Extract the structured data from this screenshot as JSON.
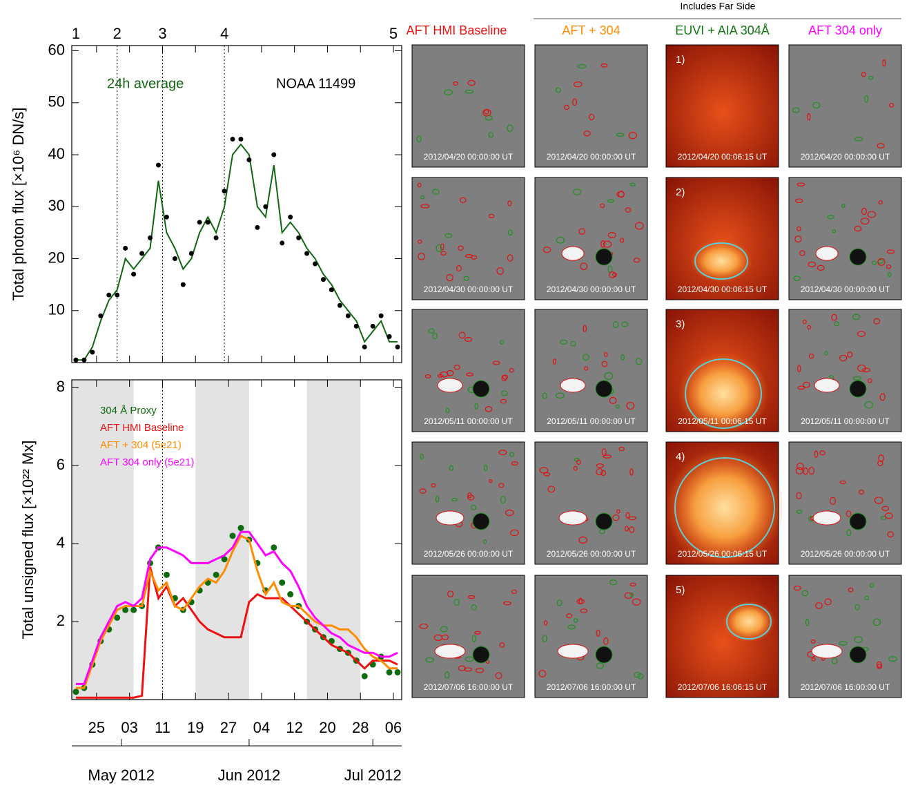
{
  "chart_data": [
    {
      "type": "line",
      "ylabel": "Total photon flux [×10⁶ DN/s]",
      "annotation": "NOAA 11499",
      "xlim": [
        "2012-04-19",
        "2012-07-08"
      ],
      "ylim": [
        0,
        61
      ],
      "yticks": [
        10,
        20,
        30,
        40,
        50,
        60
      ],
      "event_markers": [
        {
          "label": "1",
          "x": "2012-04-20",
          "dotted": false
        },
        {
          "label": "2",
          "x": "2012-04-30",
          "dotted": true
        },
        {
          "label": "3",
          "x": "2012-05-11",
          "dotted": true
        },
        {
          "label": "4",
          "x": "2012-05-26",
          "dotted": true
        },
        {
          "label": "5",
          "x": "2012-07-06",
          "dotted": false
        }
      ],
      "x": [
        "2012-04-20",
        "2012-04-22",
        "2012-04-24",
        "2012-04-26",
        "2012-04-28",
        "2012-04-30",
        "2012-05-02",
        "2012-05-04",
        "2012-05-06",
        "2012-05-08",
        "2012-05-10",
        "2012-05-12",
        "2012-05-14",
        "2012-05-16",
        "2012-05-18",
        "2012-05-20",
        "2012-05-22",
        "2012-05-24",
        "2012-05-26",
        "2012-05-28",
        "2012-05-30",
        "2012-06-01",
        "2012-06-03",
        "2012-06-05",
        "2012-06-07",
        "2012-06-09",
        "2012-06-11",
        "2012-06-13",
        "2012-06-15",
        "2012-06-17",
        "2012-06-19",
        "2012-06-21",
        "2012-06-23",
        "2012-06-25",
        "2012-06-27",
        "2012-06-29",
        "2012-07-01",
        "2012-07-03",
        "2012-07-05",
        "2012-07-07"
      ],
      "series": [
        {
          "name": "24h average",
          "color": "#116611",
          "style": "line",
          "values": [
            0.5,
            0.5,
            3,
            8,
            12,
            14,
            20,
            18,
            20,
            22,
            35,
            25,
            22,
            18,
            20,
            25,
            28,
            25,
            30,
            40,
            42,
            40,
            30,
            28,
            38,
            25,
            27,
            25,
            22,
            20,
            17,
            15,
            12,
            10,
            8,
            4,
            6,
            8,
            4,
            4
          ]
        },
        {
          "color": "#000000",
          "style": "dots",
          "values": [
            0.5,
            0.5,
            2,
            9,
            13,
            13,
            22,
            17,
            21,
            24,
            38,
            28,
            20,
            15,
            21,
            27,
            27,
            24,
            33,
            43,
            43,
            39,
            26,
            30,
            40,
            23,
            28,
            24,
            21,
            19,
            16,
            14,
            11,
            9,
            7,
            3,
            7,
            9,
            5,
            3
          ]
        }
      ]
    },
    {
      "type": "line",
      "ylabel": "Total unsigned flux [×10²² Mx]",
      "xlim": [
        "2012-04-19",
        "2012-07-08"
      ],
      "ylim": [
        0,
        8.2
      ],
      "yticks": [
        2,
        4,
        6,
        8
      ],
      "xticks": [
        {
          "value": "2012-04-25",
          "label": "25"
        },
        {
          "value": "2012-05-03",
          "label": "03"
        },
        {
          "value": "2012-05-11",
          "label": "11"
        },
        {
          "value": "2012-05-19",
          "label": "19"
        },
        {
          "value": "2012-05-27",
          "label": "27"
        },
        {
          "value": "2012-06-04",
          "label": "04"
        },
        {
          "value": "2012-06-12",
          "label": "12"
        },
        {
          "value": "2012-06-20",
          "label": "20"
        },
        {
          "value": "2012-06-28",
          "label": "28"
        },
        {
          "value": "2012-07-06",
          "label": "06"
        }
      ],
      "month_ticks": [
        {
          "value": "2012-05-01",
          "label": "May 2012"
        },
        {
          "value": "2012-06-01",
          "label": "Jun 2012"
        },
        {
          "value": "2012-07-01",
          "label": "Jul 2012"
        }
      ],
      "shaded_ranges": [
        [
          "2012-04-19",
          "2012-05-04"
        ],
        [
          "2012-05-19",
          "2012-06-01"
        ],
        [
          "2012-06-15",
          "2012-06-28"
        ]
      ],
      "x": [
        "2012-04-20",
        "2012-04-22",
        "2012-04-24",
        "2012-04-26",
        "2012-04-28",
        "2012-04-30",
        "2012-05-02",
        "2012-05-04",
        "2012-05-06",
        "2012-05-08",
        "2012-05-10",
        "2012-05-12",
        "2012-05-14",
        "2012-05-16",
        "2012-05-18",
        "2012-05-20",
        "2012-05-22",
        "2012-05-24",
        "2012-05-26",
        "2012-05-28",
        "2012-05-30",
        "2012-06-01",
        "2012-06-03",
        "2012-06-05",
        "2012-06-07",
        "2012-06-09",
        "2012-06-11",
        "2012-06-13",
        "2012-06-15",
        "2012-06-17",
        "2012-06-19",
        "2012-06-21",
        "2012-06-23",
        "2012-06-25",
        "2012-06-27",
        "2012-06-29",
        "2012-07-01",
        "2012-07-03",
        "2012-07-05",
        "2012-07-07"
      ],
      "series": [
        {
          "name": "304 Å Proxy",
          "color": "#0e6b0e",
          "style": "dots",
          "values": [
            0.2,
            0.3,
            0.9,
            1.5,
            1.8,
            2.1,
            2.3,
            2.3,
            2.4,
            3.5,
            3.9,
            3.2,
            2.6,
            2.3,
            2.5,
            2.8,
            3.0,
            3.2,
            3.6,
            4.2,
            4.4,
            4.1,
            3.5,
            2.8,
            3.9,
            3.0,
            2.7,
            2.4,
            2.0,
            1.8,
            1.6,
            1.5,
            1.3,
            1.2,
            1.0,
            0.6,
            0.9,
            1.1,
            0.7,
            0.7
          ]
        },
        {
          "name": "AFT HMI Baseline",
          "color": "#ee1111",
          "style": "line",
          "values": [
            0.05,
            0.05,
            0.05,
            0.05,
            0.05,
            0.05,
            0.05,
            0.05,
            0.1,
            3.4,
            2.6,
            2.9,
            2.4,
            2.6,
            2.3,
            2.0,
            1.8,
            1.7,
            1.6,
            1.6,
            1.6,
            2.5,
            2.7,
            2.6,
            2.6,
            2.6,
            2.4,
            2.2,
            2.0,
            1.8,
            1.6,
            1.4,
            1.3,
            1.2,
            1.0,
            0.8,
            1.0,
            1.0,
            1.0,
            0.9
          ]
        },
        {
          "name": "AFT + 304 (5e21)",
          "color": "#ff8c00",
          "style": "line",
          "values": [
            0.3,
            0.3,
            0.9,
            1.5,
            1.9,
            2.3,
            2.4,
            2.4,
            2.4,
            3.3,
            2.8,
            3.0,
            2.4,
            2.3,
            2.6,
            2.9,
            3.1,
            3.0,
            3.3,
            3.8,
            4.2,
            4.1,
            3.3,
            2.7,
            3.0,
            2.5,
            2.4,
            2.4,
            2.2,
            2.0,
            1.9,
            1.9,
            1.8,
            1.8,
            1.6,
            1.3,
            1.1,
            1.0,
            0.8,
            0.8
          ]
        },
        {
          "name": "AFT 304 only (5e21)",
          "color": "#ff00ff",
          "style": "line",
          "values": [
            0.4,
            0.4,
            1.0,
            1.6,
            2.0,
            2.4,
            2.5,
            2.4,
            2.6,
            3.6,
            3.9,
            3.9,
            3.8,
            3.7,
            3.5,
            3.5,
            3.5,
            3.6,
            3.7,
            3.9,
            4.3,
            4.3,
            4.0,
            3.7,
            3.8,
            3.5,
            3.3,
            2.9,
            2.4,
            2.1,
            1.9,
            1.7,
            1.6,
            1.4,
            1.3,
            1.2,
            1.2,
            1.1,
            1.1,
            1.2
          ]
        }
      ]
    }
  ],
  "image_grid": {
    "group_header": "Includes Far Side",
    "columns": [
      {
        "title": "AFT HMI Baseline",
        "color": "#ee1111"
      },
      {
        "title": "AFT + 304",
        "color": "#ff8c00"
      },
      {
        "title": "EUVI + AIA 304Å",
        "color": "#117711"
      },
      {
        "title": "AFT 304 only",
        "color": "#ff00ff"
      }
    ],
    "rows": [
      {
        "label": "1)",
        "timestamps": [
          "2012/04/20 00:00:00 UT",
          "2012/04/20 00:00:00 UT",
          "2012/04/20 00:06:15 UT",
          "2012/04/20 00:00:00 UT"
        ]
      },
      {
        "label": "2)",
        "timestamps": [
          "2012/04/30 00:00:00 UT",
          "2012/04/30 00:00:00 UT",
          "2012/04/30 00:06:15 UT",
          "2012/04/30 00:00:00 UT"
        ]
      },
      {
        "label": "3)",
        "timestamps": [
          "2012/05/11 00:00:00 UT",
          "2012/05/11 00:00:00 UT",
          "2012/05/11 00:06:15 UT",
          "2012/05/11 00:00:00 UT"
        ]
      },
      {
        "label": "4)",
        "timestamps": [
          "2012/05/26 00:00:00 UT",
          "2012/05/26 00:00:00 UT",
          "2012/05/26 00:06:15 UT",
          "2012/05/26 00:00:00 UT"
        ]
      },
      {
        "label": "5)",
        "timestamps": [
          "2012/07/06 16:00:00 UT",
          "2012/07/06 16:00:00 UT",
          "2012/07/06 16:06:15 UT",
          "2012/07/06 16:00:00 UT"
        ]
      }
    ]
  }
}
